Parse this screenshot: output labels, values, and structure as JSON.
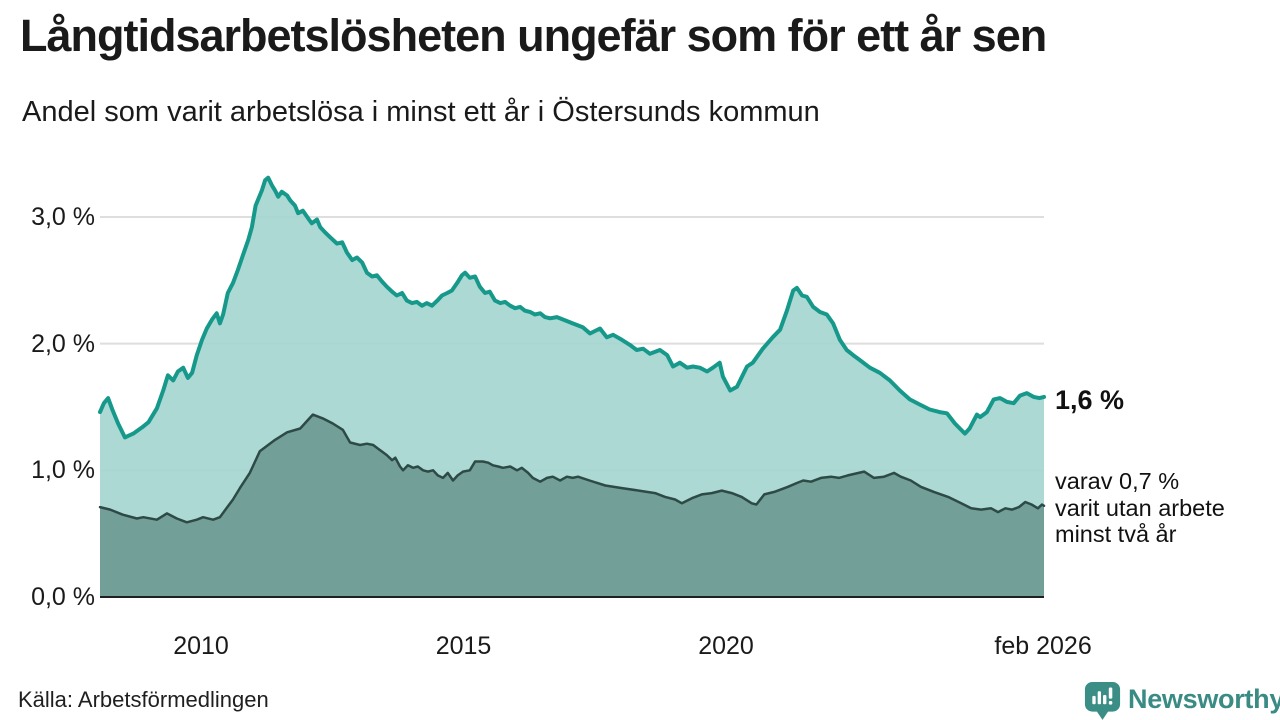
{
  "header": {
    "title": "Långtidsarbetslösheten ungefär som för ett år sen",
    "subtitle": "Andel som varit arbetslösa i minst ett år i Östersunds kommun"
  },
  "chart_data": {
    "type": "area",
    "title": "Långtidsarbetslösheten ungefär som för ett år sen",
    "subtitle": "Andel som varit arbetslösa i minst ett år i Östersunds kommun",
    "unit": "%",
    "xlim": [
      2008.07,
      2026.09
    ],
    "ylim": [
      0,
      3.4
    ],
    "grid": true,
    "colors": {
      "accent_line": "#16998b",
      "light_fill": "#a3d5cf",
      "dark_line": "#2e4a46",
      "dark_fill": "#6f9e97",
      "gridline": "#dedede",
      "axis": "#1f1f1f",
      "logo_teal": "#3a8e85"
    },
    "y_ticks": [
      {
        "label": "3,0 %",
        "value": 3.0
      },
      {
        "label": "2,0 %",
        "value": 2.0
      },
      {
        "label": "1,0 %",
        "value": 1.0
      },
      {
        "label": "0,0 %",
        "value": 0.0
      }
    ],
    "x_ticks": [
      {
        "label": "2010",
        "year": 2010
      },
      {
        "label": "2015",
        "year": 2015
      },
      {
        "label": "2020",
        "year": 2020
      },
      {
        "label": "feb 2026",
        "year": 2026.04
      }
    ],
    "series": [
      {
        "name": "arbetslösa minst ett år",
        "end_value_label": "1,6 %",
        "points": [
          [
            2008.07,
            1.46
          ],
          [
            2008.15,
            1.53
          ],
          [
            2008.23,
            1.57
          ],
          [
            2008.31,
            1.48
          ],
          [
            2008.42,
            1.37
          ],
          [
            2008.55,
            1.26
          ],
          [
            2008.71,
            1.29
          ],
          [
            2008.88,
            1.34
          ],
          [
            2009.0,
            1.38
          ],
          [
            2009.16,
            1.49
          ],
          [
            2009.28,
            1.63
          ],
          [
            2009.37,
            1.75
          ],
          [
            2009.47,
            1.71
          ],
          [
            2009.56,
            1.78
          ],
          [
            2009.66,
            1.81
          ],
          [
            2009.75,
            1.73
          ],
          [
            2009.83,
            1.77
          ],
          [
            2009.92,
            1.91
          ],
          [
            2010.02,
            2.03
          ],
          [
            2010.11,
            2.12
          ],
          [
            2010.21,
            2.19
          ],
          [
            2010.3,
            2.24
          ],
          [
            2010.36,
            2.16
          ],
          [
            2010.42,
            2.23
          ],
          [
            2010.51,
            2.4
          ],
          [
            2010.61,
            2.48
          ],
          [
            2010.7,
            2.58
          ],
          [
            2010.8,
            2.7
          ],
          [
            2010.9,
            2.82
          ],
          [
            2010.97,
            2.92
          ],
          [
            2011.04,
            3.09
          ],
          [
            2011.16,
            3.21
          ],
          [
            2011.22,
            3.29
          ],
          [
            2011.28,
            3.31
          ],
          [
            2011.35,
            3.25
          ],
          [
            2011.41,
            3.21
          ],
          [
            2011.47,
            3.16
          ],
          [
            2011.54,
            3.2
          ],
          [
            2011.64,
            3.17
          ],
          [
            2011.7,
            3.13
          ],
          [
            2011.79,
            3.09
          ],
          [
            2011.85,
            3.03
          ],
          [
            2011.94,
            3.05
          ],
          [
            2012.04,
            2.99
          ],
          [
            2012.11,
            2.95
          ],
          [
            2012.21,
            2.98
          ],
          [
            2012.27,
            2.92
          ],
          [
            2012.36,
            2.88
          ],
          [
            2012.46,
            2.84
          ],
          [
            2012.59,
            2.79
          ],
          [
            2012.69,
            2.8
          ],
          [
            2012.78,
            2.72
          ],
          [
            2012.88,
            2.66
          ],
          [
            2012.97,
            2.68
          ],
          [
            2013.07,
            2.64
          ],
          [
            2013.16,
            2.56
          ],
          [
            2013.26,
            2.53
          ],
          [
            2013.35,
            2.54
          ],
          [
            2013.45,
            2.49
          ],
          [
            2013.54,
            2.45
          ],
          [
            2013.64,
            2.41
          ],
          [
            2013.73,
            2.38
          ],
          [
            2013.83,
            2.4
          ],
          [
            2013.92,
            2.34
          ],
          [
            2014.02,
            2.32
          ],
          [
            2014.11,
            2.33
          ],
          [
            2014.21,
            2.3
          ],
          [
            2014.3,
            2.32
          ],
          [
            2014.4,
            2.3
          ],
          [
            2014.5,
            2.34
          ],
          [
            2014.59,
            2.38
          ],
          [
            2014.69,
            2.4
          ],
          [
            2014.78,
            2.42
          ],
          [
            2014.88,
            2.48
          ],
          [
            2014.97,
            2.54
          ],
          [
            2015.03,
            2.56
          ],
          [
            2015.12,
            2.52
          ],
          [
            2015.22,
            2.53
          ],
          [
            2015.31,
            2.45
          ],
          [
            2015.41,
            2.4
          ],
          [
            2015.5,
            2.41
          ],
          [
            2015.6,
            2.34
          ],
          [
            2015.7,
            2.32
          ],
          [
            2015.79,
            2.33
          ],
          [
            2015.89,
            2.3
          ],
          [
            2015.98,
            2.28
          ],
          [
            2016.08,
            2.29
          ],
          [
            2016.17,
            2.26
          ],
          [
            2016.27,
            2.25
          ],
          [
            2016.36,
            2.23
          ],
          [
            2016.46,
            2.24
          ],
          [
            2016.55,
            2.21
          ],
          [
            2016.65,
            2.2
          ],
          [
            2016.78,
            2.21
          ],
          [
            2016.9,
            2.19
          ],
          [
            2017.08,
            2.16
          ],
          [
            2017.27,
            2.13
          ],
          [
            2017.41,
            2.08
          ],
          [
            2017.6,
            2.12
          ],
          [
            2017.73,
            2.05
          ],
          [
            2017.85,
            2.07
          ],
          [
            2018.02,
            2.03
          ],
          [
            2018.17,
            1.99
          ],
          [
            2018.3,
            1.95
          ],
          [
            2018.42,
            1.96
          ],
          [
            2018.55,
            1.92
          ],
          [
            2018.74,
            1.95
          ],
          [
            2018.88,
            1.91
          ],
          [
            2018.99,
            1.82
          ],
          [
            2019.12,
            1.85
          ],
          [
            2019.26,
            1.81
          ],
          [
            2019.37,
            1.82
          ],
          [
            2019.5,
            1.81
          ],
          [
            2019.64,
            1.78
          ],
          [
            2019.75,
            1.81
          ],
          [
            2019.88,
            1.85
          ],
          [
            2019.94,
            1.74
          ],
          [
            2020.08,
            1.63
          ],
          [
            2020.21,
            1.66
          ],
          [
            2020.4,
            1.82
          ],
          [
            2020.51,
            1.85
          ],
          [
            2020.7,
            1.96
          ],
          [
            2020.89,
            2.05
          ],
          [
            2021.03,
            2.11
          ],
          [
            2021.16,
            2.26
          ],
          [
            2021.28,
            2.42
          ],
          [
            2021.35,
            2.44
          ],
          [
            2021.45,
            2.38
          ],
          [
            2021.54,
            2.37
          ],
          [
            2021.66,
            2.29
          ],
          [
            2021.79,
            2.25
          ],
          [
            2021.92,
            2.23
          ],
          [
            2022.04,
            2.16
          ],
          [
            2022.17,
            2.03
          ],
          [
            2022.3,
            1.95
          ],
          [
            2022.42,
            1.91
          ],
          [
            2022.55,
            1.87
          ],
          [
            2022.74,
            1.81
          ],
          [
            2022.93,
            1.77
          ],
          [
            2023.12,
            1.71
          ],
          [
            2023.31,
            1.63
          ],
          [
            2023.5,
            1.56
          ],
          [
            2023.69,
            1.52
          ],
          [
            2023.88,
            1.48
          ],
          [
            2024.07,
            1.46
          ],
          [
            2024.21,
            1.45
          ],
          [
            2024.36,
            1.37
          ],
          [
            2024.55,
            1.29
          ],
          [
            2024.64,
            1.33
          ],
          [
            2024.78,
            1.44
          ],
          [
            2024.84,
            1.42
          ],
          [
            2024.97,
            1.46
          ],
          [
            2025.1,
            1.56
          ],
          [
            2025.22,
            1.57
          ],
          [
            2025.35,
            1.54
          ],
          [
            2025.48,
            1.53
          ],
          [
            2025.6,
            1.59
          ],
          [
            2025.73,
            1.61
          ],
          [
            2025.86,
            1.58
          ],
          [
            2025.97,
            1.57
          ],
          [
            2026.08,
            1.58
          ]
        ]
      },
      {
        "name": "varav utan arbete minst två år",
        "end_value_label": "0,7 %",
        "points": [
          [
            2008.07,
            0.71
          ],
          [
            2008.27,
            0.69
          ],
          [
            2008.51,
            0.65
          ],
          [
            2008.78,
            0.62
          ],
          [
            2008.9,
            0.63
          ],
          [
            2009.16,
            0.61
          ],
          [
            2009.35,
            0.66
          ],
          [
            2009.54,
            0.62
          ],
          [
            2009.73,
            0.59
          ],
          [
            2009.92,
            0.61
          ],
          [
            2010.04,
            0.63
          ],
          [
            2010.23,
            0.61
          ],
          [
            2010.36,
            0.63
          ],
          [
            2010.5,
            0.71
          ],
          [
            2010.61,
            0.77
          ],
          [
            2010.74,
            0.86
          ],
          [
            2010.93,
            0.98
          ],
          [
            2011.12,
            1.15
          ],
          [
            2011.41,
            1.24
          ],
          [
            2011.64,
            1.3
          ],
          [
            2011.89,
            1.33
          ],
          [
            2012.13,
            1.44
          ],
          [
            2012.32,
            1.41
          ],
          [
            2012.51,
            1.37
          ],
          [
            2012.7,
            1.32
          ],
          [
            2012.84,
            1.22
          ],
          [
            2013.03,
            1.2
          ],
          [
            2013.16,
            1.21
          ],
          [
            2013.28,
            1.2
          ],
          [
            2013.41,
            1.16
          ],
          [
            2013.54,
            1.12
          ],
          [
            2013.64,
            1.08
          ],
          [
            2013.7,
            1.1
          ],
          [
            2013.79,
            1.03
          ],
          [
            2013.85,
            1.0
          ],
          [
            2013.94,
            1.04
          ],
          [
            2014.04,
            1.02
          ],
          [
            2014.13,
            1.03
          ],
          [
            2014.23,
            1.0
          ],
          [
            2014.32,
            0.99
          ],
          [
            2014.42,
            1.0
          ],
          [
            2014.51,
            0.96
          ],
          [
            2014.61,
            0.94
          ],
          [
            2014.7,
            0.98
          ],
          [
            2014.8,
            0.92
          ],
          [
            2014.89,
            0.96
          ],
          [
            2014.99,
            0.99
          ],
          [
            2015.12,
            1.0
          ],
          [
            2015.22,
            1.07
          ],
          [
            2015.37,
            1.07
          ],
          [
            2015.47,
            1.06
          ],
          [
            2015.56,
            1.04
          ],
          [
            2015.66,
            1.03
          ],
          [
            2015.75,
            1.02
          ],
          [
            2015.89,
            1.03
          ],
          [
            2016.02,
            1.0
          ],
          [
            2016.11,
            1.02
          ],
          [
            2016.23,
            0.98
          ],
          [
            2016.32,
            0.94
          ],
          [
            2016.46,
            0.91
          ],
          [
            2016.59,
            0.94
          ],
          [
            2016.7,
            0.95
          ],
          [
            2016.84,
            0.92
          ],
          [
            2016.97,
            0.95
          ],
          [
            2017.08,
            0.94
          ],
          [
            2017.18,
            0.95
          ],
          [
            2017.4,
            0.92
          ],
          [
            2017.7,
            0.88
          ],
          [
            2018.02,
            0.86
          ],
          [
            2018.34,
            0.84
          ],
          [
            2018.65,
            0.82
          ],
          [
            2018.84,
            0.79
          ],
          [
            2019.03,
            0.77
          ],
          [
            2019.16,
            0.74
          ],
          [
            2019.35,
            0.78
          ],
          [
            2019.54,
            0.81
          ],
          [
            2019.73,
            0.82
          ],
          [
            2019.92,
            0.84
          ],
          [
            2020.11,
            0.82
          ],
          [
            2020.3,
            0.79
          ],
          [
            2020.49,
            0.74
          ],
          [
            2020.58,
            0.73
          ],
          [
            2020.73,
            0.81
          ],
          [
            2020.92,
            0.83
          ],
          [
            2021.18,
            0.87
          ],
          [
            2021.35,
            0.9
          ],
          [
            2021.47,
            0.92
          ],
          [
            2021.62,
            0.91
          ],
          [
            2021.81,
            0.94
          ],
          [
            2022.0,
            0.95
          ],
          [
            2022.15,
            0.94
          ],
          [
            2022.32,
            0.96
          ],
          [
            2022.63,
            0.99
          ],
          [
            2022.82,
            0.94
          ],
          [
            2023.01,
            0.95
          ],
          [
            2023.2,
            0.98
          ],
          [
            2023.33,
            0.95
          ],
          [
            2023.52,
            0.92
          ],
          [
            2023.71,
            0.87
          ],
          [
            2023.96,
            0.83
          ],
          [
            2024.23,
            0.79
          ],
          [
            2024.48,
            0.74
          ],
          [
            2024.67,
            0.7
          ],
          [
            2024.86,
            0.69
          ],
          [
            2025.05,
            0.7
          ],
          [
            2025.18,
            0.67
          ],
          [
            2025.32,
            0.7
          ],
          [
            2025.45,
            0.69
          ],
          [
            2025.58,
            0.71
          ],
          [
            2025.7,
            0.75
          ],
          [
            2025.82,
            0.73
          ],
          [
            2025.94,
            0.7
          ],
          [
            2026.02,
            0.73
          ],
          [
            2026.08,
            0.72
          ]
        ]
      }
    ]
  },
  "annotations": {
    "end_value": "1,6 %",
    "sub_line1": "varav 0,7 %",
    "sub_line2": "varit utan arbete",
    "sub_line3": "minst två år"
  },
  "footer": {
    "source": "Källa: Arbetsförmedlingen",
    "logo_text": "Newsworthy"
  }
}
